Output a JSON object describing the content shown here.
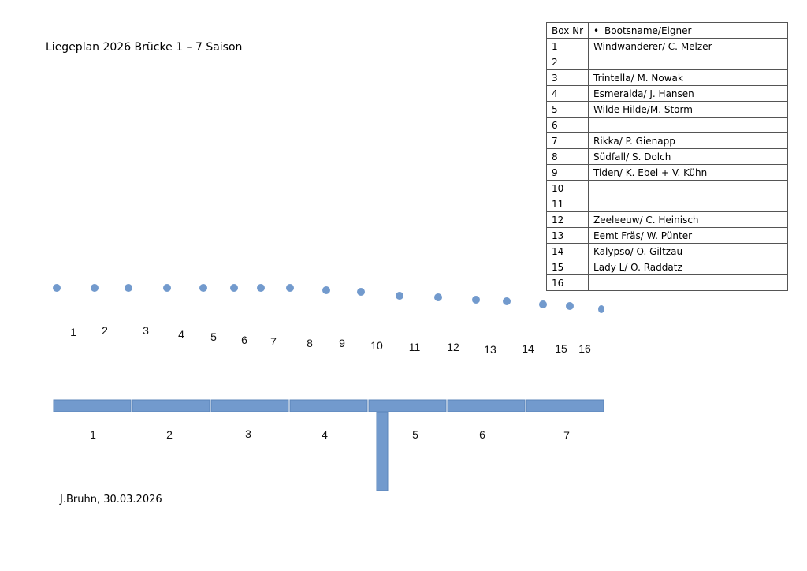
{
  "title": "Liegeplan 2026 Brücke 1 – 7  Saison",
  "footer": "J.Bruhn, 30.03.2026",
  "colors": {
    "accent": "#729acd",
    "accent_stroke": "#5b84b9"
  },
  "table": {
    "headers": [
      "Box Nr",
      "Bootsname/Eigner"
    ],
    "header_bullet": "•",
    "rows": [
      [
        "1",
        "Windwanderer/ C. Melzer"
      ],
      [
        "2",
        ""
      ],
      [
        "3",
        "Trintella/ M. Nowak"
      ],
      [
        "4",
        "Esmeralda/ J. Hansen"
      ],
      [
        "5",
        "Wilde Hilde/M. Storm"
      ],
      [
        "6",
        ""
      ],
      [
        "7",
        "Rikka/ P. Gienapp"
      ],
      [
        "8",
        "Südfall/ S. Dolch"
      ],
      [
        "9",
        "Tiden/ K. Ebel + V. Kühn"
      ],
      [
        "10",
        ""
      ],
      [
        "11",
        ""
      ],
      [
        "12",
        "Zeeleeuw/ C. Heinisch"
      ],
      [
        "13",
        "Eemt Fräs/ W. Pünter"
      ],
      [
        "14",
        "Kalypso/ O. Giltzau"
      ],
      [
        "15",
        "Lady L/ O. Raddatz"
      ],
      [
        "16",
        ""
      ]
    ]
  },
  "berths": [
    "1",
    "2",
    "3",
    "4",
    "5",
    "6",
    "7",
    "8",
    "9",
    "10",
    "11",
    "12",
    "13",
    "14",
    "15",
    "16"
  ],
  "piers": [
    "1",
    "2",
    "3",
    "4",
    "5",
    "6",
    "7"
  ]
}
